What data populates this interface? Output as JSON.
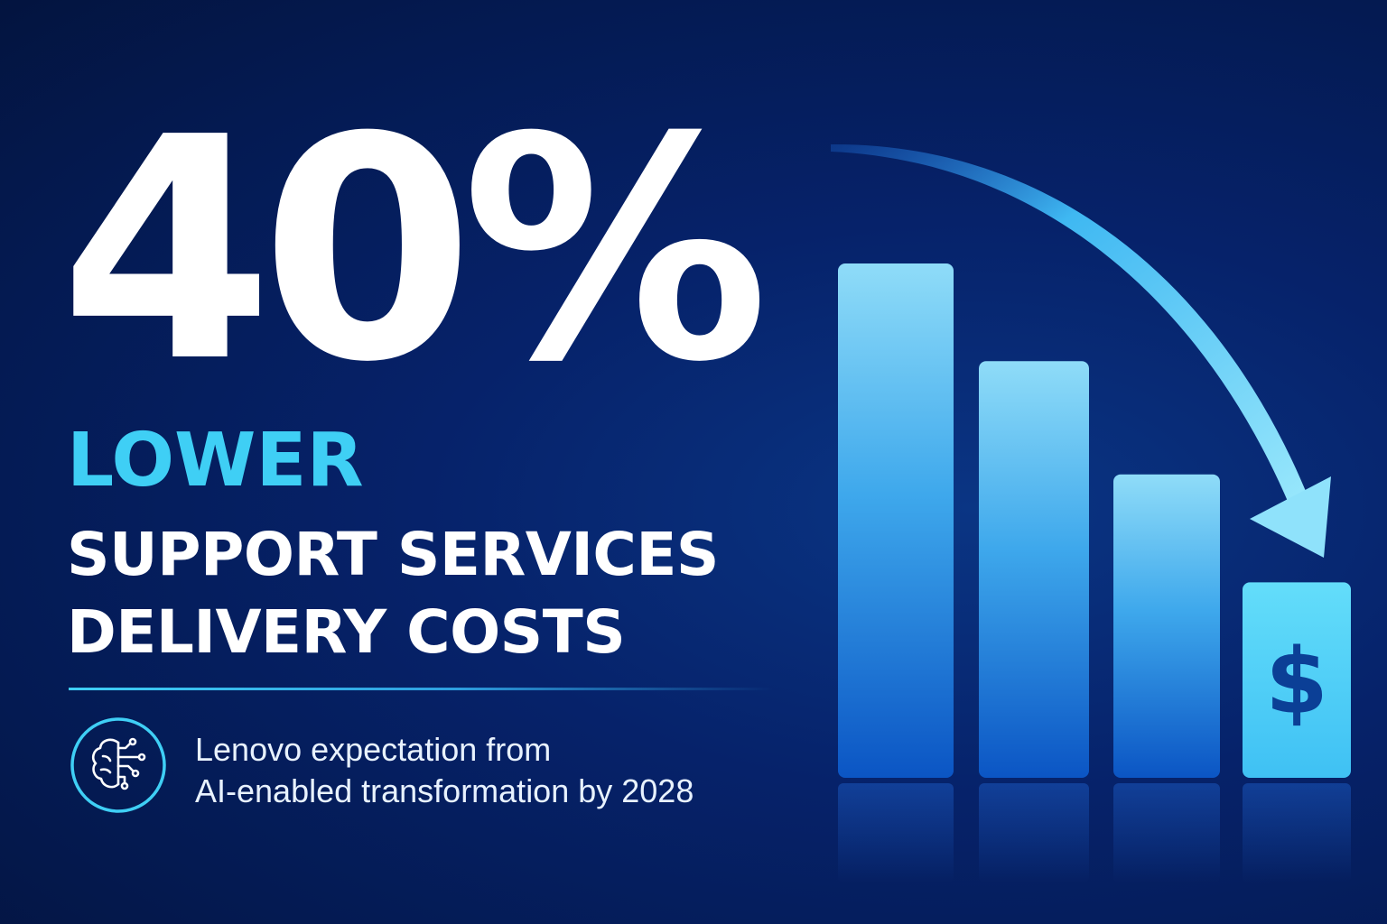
{
  "headline": "40%",
  "subhead": {
    "accent": "LOWER",
    "line1": "SUPPORT SERVICES",
    "line2": "DELIVERY COSTS"
  },
  "caption": {
    "line1": "Lenovo expectation from",
    "line2": "AI-enabled transformation by 2028"
  },
  "icon": "ai-brain-circuit-icon",
  "colors": {
    "accent": "#3fcff5",
    "background": "#041a52",
    "bar_light": "#7fd3f7",
    "bar_dark": "#0b5cc9"
  },
  "chart_data": {
    "type": "bar",
    "categories": [
      "",
      "",
      "",
      ""
    ],
    "values": [
      100,
      81,
      59,
      38
    ],
    "trend": "down",
    "last_bar_icon": "dollar-sign-icon",
    "last_bar_label": "$"
  }
}
